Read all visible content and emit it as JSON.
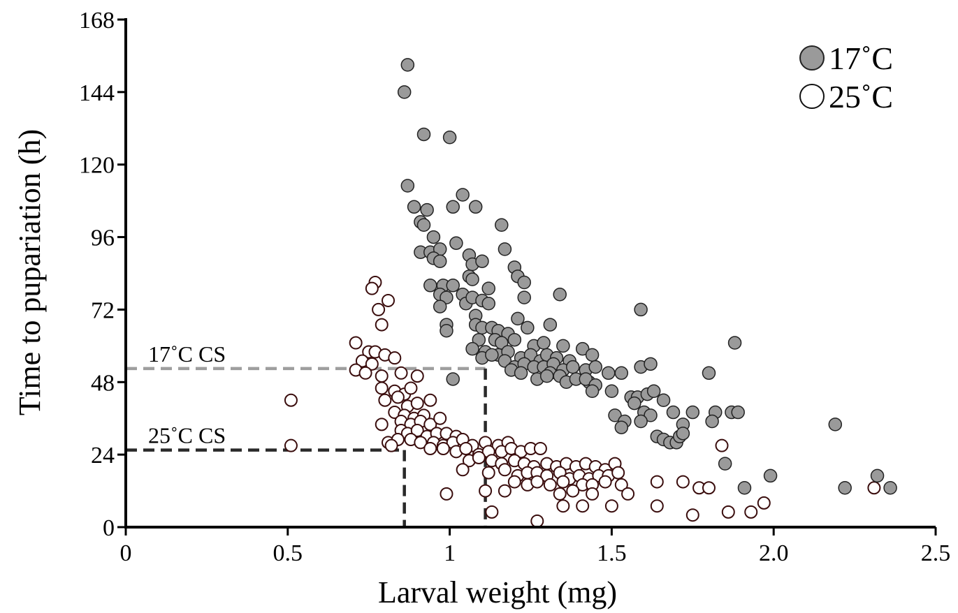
{
  "chart_data": {
    "type": "scatter",
    "title": "",
    "xlabel": "Larval weight (mg)",
    "ylabel": "Time to pupariation (h)",
    "xlim": [
      0,
      2.5
    ],
    "ylim": [
      0,
      168
    ],
    "x_ticks": [
      "0",
      "0.5",
      "1",
      "1.5",
      "2.0",
      "2.5"
    ],
    "x_tick_values": [
      0,
      0.5,
      1,
      1.5,
      2.0,
      2.5
    ],
    "y_ticks": [
      "0",
      "24",
      "48",
      "72",
      "96",
      "120",
      "144",
      "168"
    ],
    "y_tick_values": [
      0,
      24,
      48,
      72,
      96,
      120,
      144,
      168
    ],
    "grid": false,
    "legend_position": "top-right",
    "colors": {
      "s17": "#9a9a9a",
      "s25": "#ffffff",
      "s25_edge": "#3a0d0d",
      "s17_edge": "#222222",
      "cs17_line": "#9e9e9e",
      "cs25_line": "#2a2a2a"
    },
    "critical_sizes": [
      {
        "label": "17˚C CS",
        "weight": 1.11,
        "time": 52.5
      },
      {
        "label": "25˚C CS",
        "weight": 0.86,
        "time": 25.5
      }
    ],
    "series": [
      {
        "name": "17˚C",
        "points": [
          [
            0.87,
            153
          ],
          [
            0.86,
            144
          ],
          [
            0.92,
            130
          ],
          [
            1.0,
            129
          ],
          [
            0.87,
            113
          ],
          [
            1.04,
            110
          ],
          [
            0.89,
            106
          ],
          [
            1.01,
            106
          ],
          [
            0.93,
            105
          ],
          [
            1.08,
            106
          ],
          [
            0.91,
            101
          ],
          [
            0.92,
            100
          ],
          [
            1.16,
            100
          ],
          [
            0.95,
            96
          ],
          [
            1.02,
            94
          ],
          [
            0.91,
            91
          ],
          [
            0.94,
            91
          ],
          [
            0.97,
            92
          ],
          [
            1.06,
            90
          ],
          [
            1.17,
            92
          ],
          [
            0.95,
            89
          ],
          [
            0.97,
            88
          ],
          [
            1.07,
            87
          ],
          [
            1.1,
            88
          ],
          [
            1.2,
            86
          ],
          [
            1.06,
            83
          ],
          [
            1.12,
            79
          ],
          [
            1.21,
            83
          ],
          [
            1.23,
            81
          ],
          [
            0.94,
            80
          ],
          [
            0.98,
            80
          ],
          [
            1.01,
            80
          ],
          [
            1.07,
            82
          ],
          [
            0.97,
            77
          ],
          [
            0.99,
            76
          ],
          [
            1.04,
            77
          ],
          [
            1.05,
            74
          ],
          [
            1.07,
            76
          ],
          [
            1.1,
            75
          ],
          [
            1.12,
            74
          ],
          [
            1.23,
            76
          ],
          [
            1.34,
            77
          ],
          [
            0.97,
            73
          ],
          [
            1.08,
            70
          ],
          [
            1.59,
            72
          ],
          [
            0.99,
            67
          ],
          [
            1.08,
            67
          ],
          [
            1.1,
            66
          ],
          [
            1.13,
            66
          ],
          [
            1.15,
            65
          ],
          [
            0.99,
            65
          ],
          [
            1.24,
            66
          ],
          [
            1.21,
            69
          ],
          [
            1.31,
            67
          ],
          [
            1.18,
            64
          ],
          [
            1.09,
            62
          ],
          [
            1.14,
            62
          ],
          [
            1.16,
            61
          ],
          [
            1.2,
            62
          ],
          [
            1.26,
            60
          ],
          [
            1.29,
            61
          ],
          [
            1.35,
            60
          ],
          [
            1.41,
            59
          ],
          [
            1.07,
            59
          ],
          [
            1.11,
            58
          ],
          [
            1.15,
            57
          ],
          [
            1.18,
            58
          ],
          [
            1.22,
            56
          ],
          [
            1.25,
            57
          ],
          [
            1.28,
            55
          ],
          [
            1.3,
            57
          ],
          [
            1.33,
            56
          ],
          [
            1.37,
            55
          ],
          [
            1.44,
            57
          ],
          [
            1.88,
            61
          ],
          [
            1.1,
            56
          ],
          [
            1.13,
            57
          ],
          [
            1.17,
            55
          ],
          [
            1.2,
            53
          ],
          [
            1.23,
            54
          ],
          [
            1.26,
            53
          ],
          [
            1.29,
            53
          ],
          [
            1.32,
            54
          ],
          [
            1.35,
            52
          ],
          [
            1.38,
            53
          ],
          [
            1.42,
            52
          ],
          [
            1.45,
            53
          ],
          [
            1.19,
            52
          ],
          [
            1.22,
            51
          ],
          [
            1.27,
            49
          ],
          [
            1.31,
            51
          ],
          [
            1.34,
            50
          ],
          [
            1.36,
            48
          ],
          [
            1.39,
            49
          ],
          [
            1.43,
            48
          ],
          [
            1.49,
            51
          ],
          [
            1.53,
            51
          ],
          [
            1.01,
            49
          ],
          [
            1.3,
            50
          ],
          [
            1.42,
            49
          ],
          [
            1.45,
            47
          ],
          [
            1.5,
            45
          ],
          [
            1.44,
            45
          ],
          [
            1.59,
            53
          ],
          [
            1.62,
            54
          ],
          [
            1.8,
            51
          ],
          [
            1.56,
            43
          ],
          [
            1.58,
            43
          ],
          [
            1.61,
            44
          ],
          [
            1.63,
            45
          ],
          [
            1.66,
            42
          ],
          [
            1.57,
            41
          ],
          [
            1.51,
            37
          ],
          [
            1.54,
            35
          ],
          [
            1.6,
            38
          ],
          [
            1.62,
            37
          ],
          [
            1.59,
            35
          ],
          [
            1.53,
            33
          ],
          [
            1.69,
            38
          ],
          [
            1.75,
            38
          ],
          [
            1.72,
            34
          ],
          [
            1.64,
            30
          ],
          [
            1.66,
            29
          ],
          [
            1.68,
            28
          ],
          [
            1.7,
            28
          ],
          [
            1.71,
            30
          ],
          [
            1.72,
            31
          ],
          [
            1.82,
            38
          ],
          [
            1.81,
            35
          ],
          [
            1.87,
            38
          ],
          [
            1.89,
            38
          ],
          [
            2.19,
            34
          ],
          [
            1.85,
            21
          ],
          [
            1.91,
            13
          ],
          [
            1.99,
            17
          ],
          [
            2.22,
            13
          ],
          [
            2.32,
            17
          ],
          [
            2.36,
            13
          ]
        ]
      },
      {
        "name": "25˚C",
        "points": [
          [
            0.77,
            81
          ],
          [
            0.76,
            79
          ],
          [
            0.81,
            75
          ],
          [
            0.78,
            72
          ],
          [
            0.79,
            67
          ],
          [
            0.71,
            61
          ],
          [
            0.75,
            58
          ],
          [
            0.77,
            58
          ],
          [
            0.8,
            57
          ],
          [
            0.83,
            56
          ],
          [
            0.73,
            55
          ],
          [
            0.76,
            54
          ],
          [
            0.71,
            52
          ],
          [
            0.74,
            51
          ],
          [
            0.79,
            50
          ],
          [
            0.85,
            51
          ],
          [
            0.79,
            46
          ],
          [
            0.83,
            45
          ],
          [
            0.86,
            44
          ],
          [
            0.88,
            46
          ],
          [
            0.9,
            50
          ],
          [
            0.51,
            42
          ],
          [
            0.8,
            42
          ],
          [
            0.84,
            43
          ],
          [
            0.87,
            40
          ],
          [
            0.9,
            41
          ],
          [
            0.94,
            42
          ],
          [
            0.83,
            38
          ],
          [
            0.86,
            37
          ],
          [
            0.89,
            36
          ],
          [
            0.92,
            37
          ],
          [
            0.85,
            35
          ],
          [
            0.88,
            34
          ],
          [
            0.91,
            35
          ],
          [
            0.94,
            34
          ],
          [
            0.97,
            36
          ],
          [
            0.79,
            34
          ],
          [
            0.85,
            32
          ],
          [
            0.87,
            31
          ],
          [
            0.9,
            32
          ],
          [
            0.93,
            30
          ],
          [
            0.96,
            31
          ],
          [
            0.99,
            31
          ],
          [
            1.02,
            30
          ],
          [
            0.81,
            28
          ],
          [
            0.84,
            29
          ],
          [
            0.88,
            29
          ],
          [
            0.91,
            28
          ],
          [
            0.95,
            28
          ],
          [
            0.98,
            27
          ],
          [
            1.01,
            28
          ],
          [
            1.04,
            29
          ],
          [
            1.07,
            27
          ],
          [
            1.11,
            28
          ],
          [
            1.15,
            27
          ],
          [
            1.18,
            28
          ],
          [
            0.51,
            27
          ],
          [
            0.82,
            27
          ],
          [
            0.94,
            26
          ],
          [
            0.98,
            26
          ],
          [
            1.02,
            25
          ],
          [
            1.05,
            26
          ],
          [
            1.09,
            24
          ],
          [
            1.12,
            25
          ],
          [
            1.16,
            25
          ],
          [
            1.19,
            26
          ],
          [
            1.22,
            25
          ],
          [
            1.25,
            26
          ],
          [
            1.28,
            26
          ],
          [
            1.06,
            22
          ],
          [
            1.09,
            23
          ],
          [
            1.13,
            22
          ],
          [
            1.16,
            21
          ],
          [
            1.2,
            22
          ],
          [
            1.23,
            21
          ],
          [
            1.26,
            20
          ],
          [
            1.3,
            21
          ],
          [
            1.33,
            20
          ],
          [
            1.36,
            21
          ],
          [
            1.39,
            20
          ],
          [
            1.42,
            21
          ],
          [
            1.45,
            20
          ],
          [
            1.48,
            19
          ],
          [
            1.51,
            21
          ],
          [
            1.04,
            19
          ],
          [
            1.12,
            18
          ],
          [
            1.17,
            19
          ],
          [
            1.21,
            17
          ],
          [
            1.24,
            18
          ],
          [
            1.27,
            18
          ],
          [
            1.3,
            17
          ],
          [
            1.34,
            18
          ],
          [
            1.37,
            16
          ],
          [
            1.4,
            17
          ],
          [
            1.43,
            16
          ],
          [
            1.46,
            17
          ],
          [
            1.49,
            17
          ],
          [
            1.52,
            18
          ],
          [
            1.2,
            15
          ],
          [
            1.24,
            14
          ],
          [
            1.27,
            15
          ],
          [
            1.31,
            14
          ],
          [
            1.35,
            15
          ],
          [
            1.41,
            14
          ],
          [
            1.44,
            14
          ],
          [
            1.48,
            15
          ],
          [
            1.53,
            14
          ],
          [
            1.17,
            12
          ],
          [
            1.34,
            11
          ],
          [
            1.38,
            12
          ],
          [
            1.44,
            11
          ],
          [
            1.55,
            11
          ],
          [
            1.64,
            15
          ],
          [
            1.72,
            15
          ],
          [
            1.77,
            13
          ],
          [
            1.8,
            13
          ],
          [
            0.99,
            11
          ],
          [
            1.11,
            12
          ],
          [
            1.35,
            7
          ],
          [
            1.41,
            7
          ],
          [
            1.5,
            7
          ],
          [
            1.64,
            7
          ],
          [
            1.13,
            5
          ],
          [
            1.75,
            4
          ],
          [
            1.86,
            5
          ],
          [
            1.93,
            5
          ],
          [
            1.97,
            8
          ],
          [
            1.27,
            2
          ],
          [
            1.84,
            27
          ],
          [
            2.31,
            13
          ]
        ]
      }
    ]
  }
}
